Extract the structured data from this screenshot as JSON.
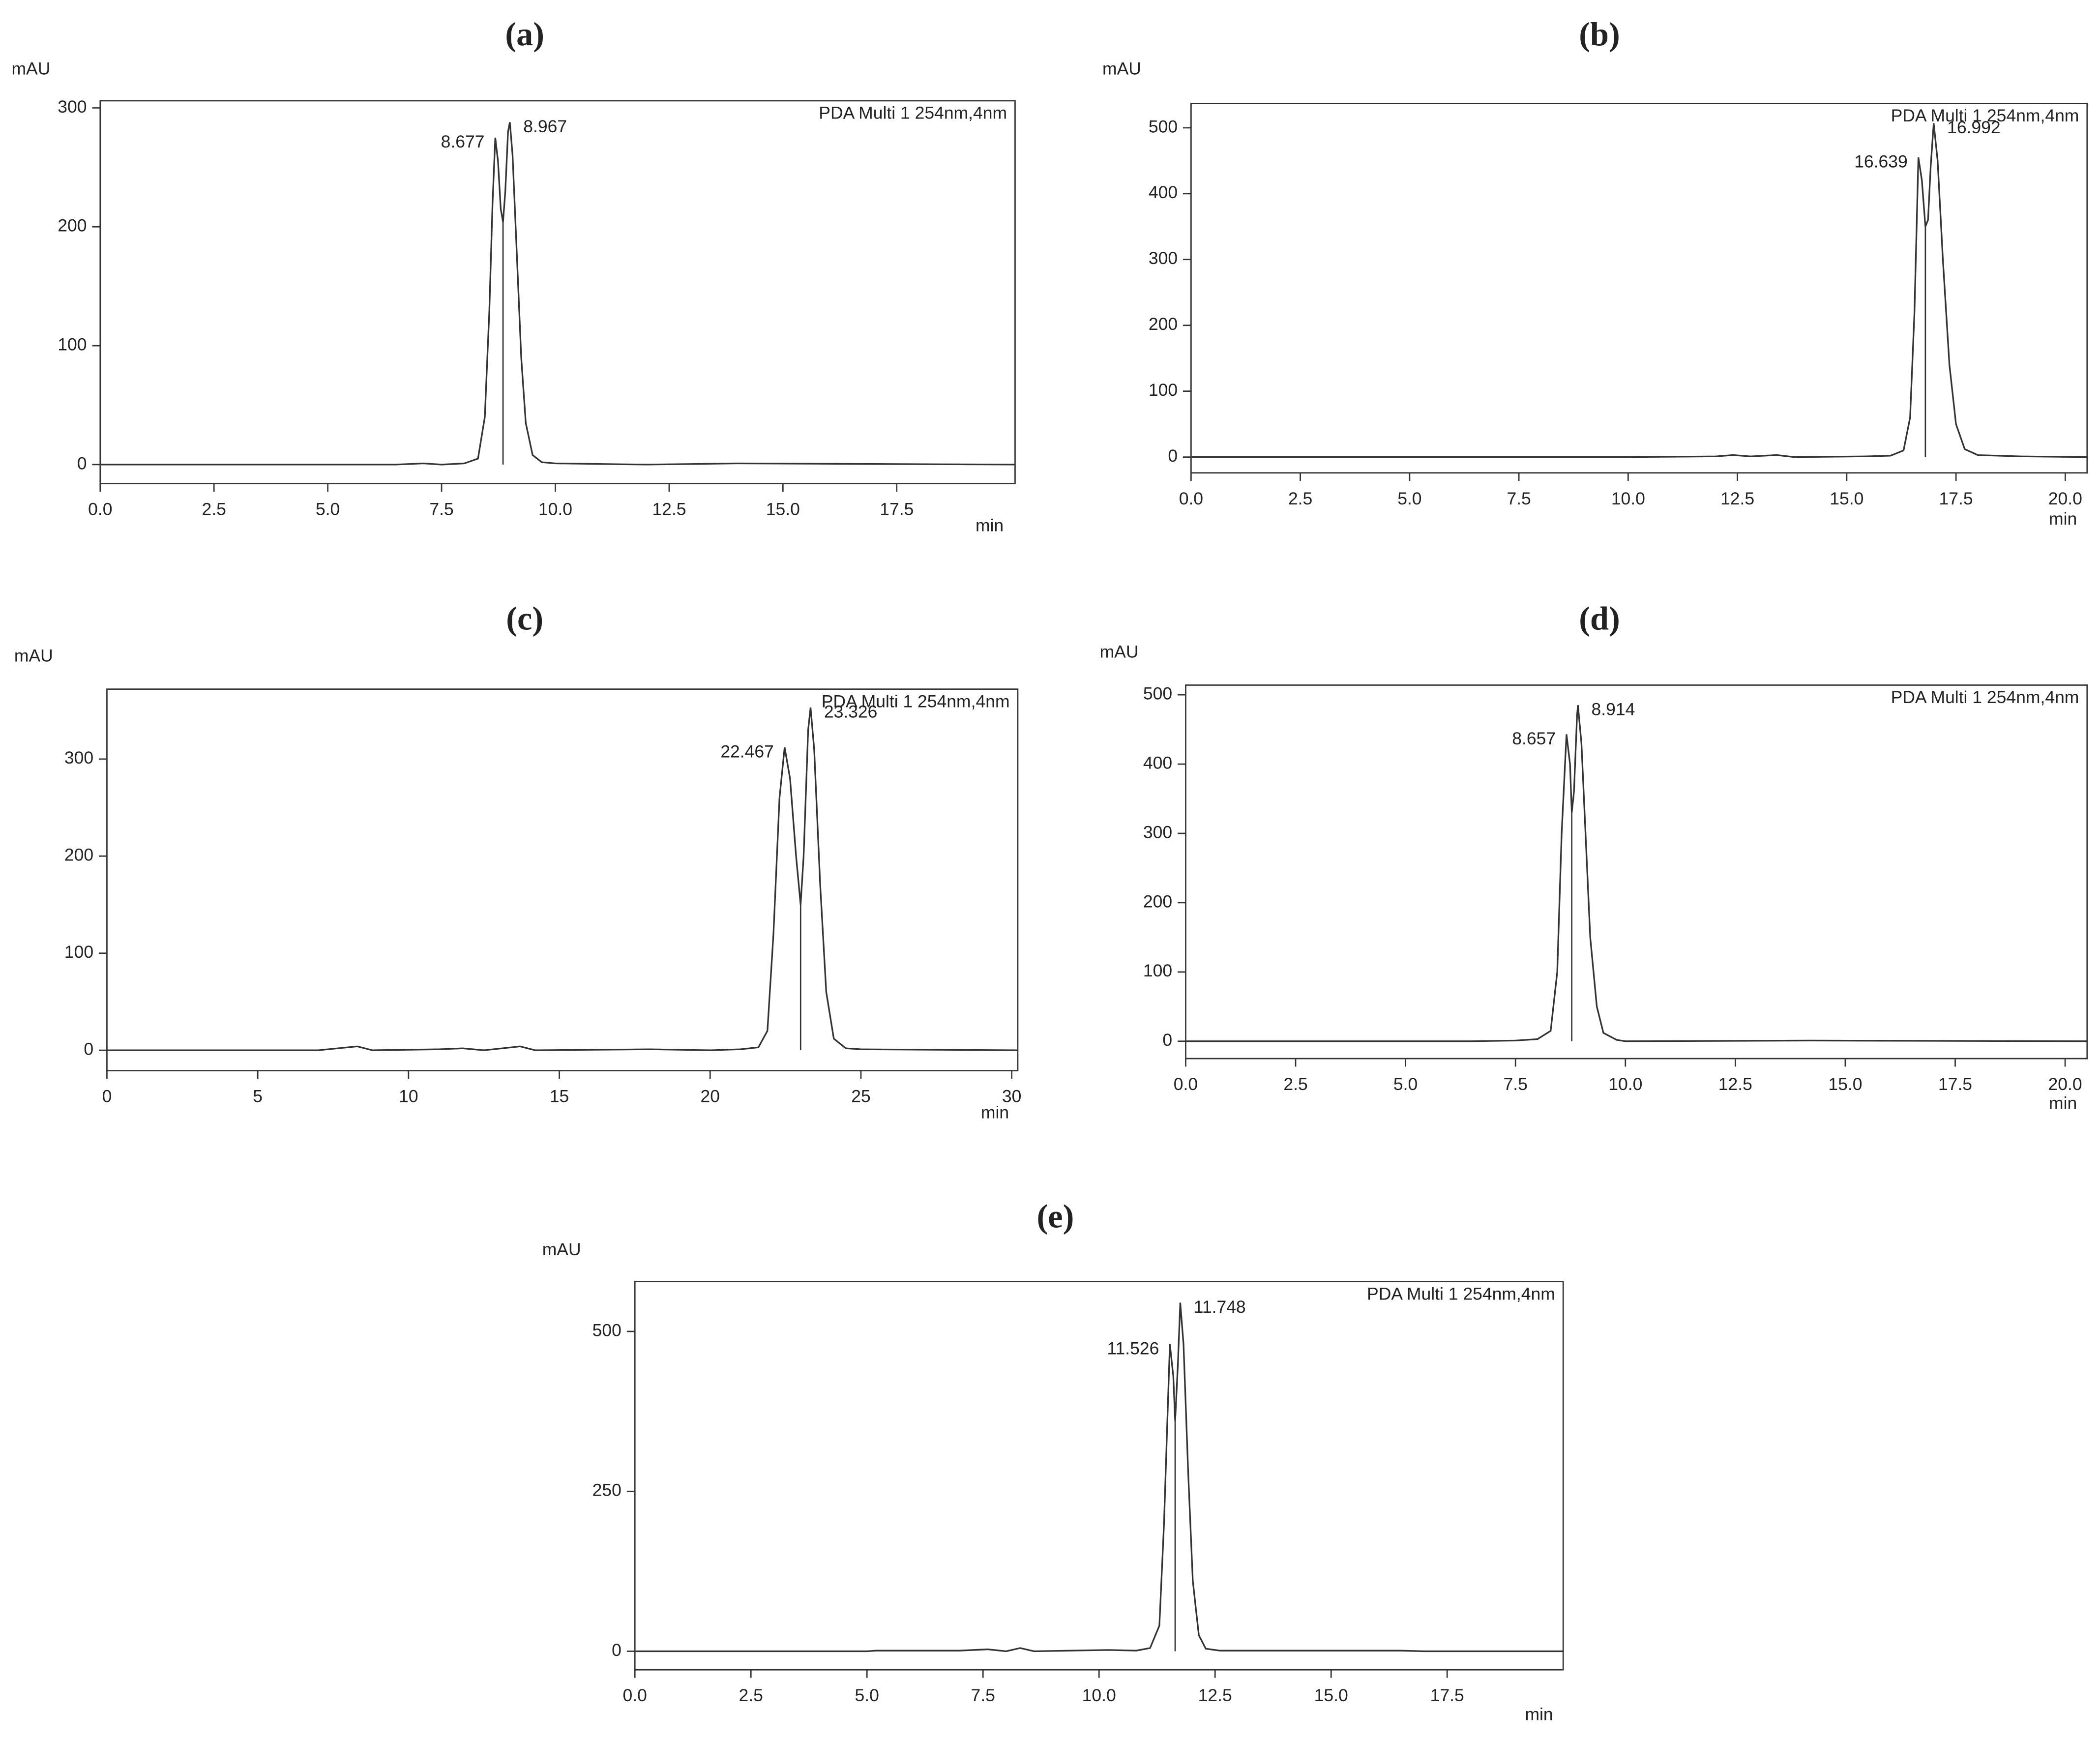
{
  "chart_data": [
    {
      "type": "line",
      "panel_label": "(a)",
      "ylabel": "mAU",
      "xlabel": "min",
      "annotation": "PDA Multi 1 254nm,4nm",
      "color": "#333333",
      "xlim": [
        0,
        20.1
      ],
      "ylim": [
        -16,
        306
      ],
      "xticks": [
        {
          "value": 0,
          "label": "0.0"
        },
        2.5,
        {
          "value": 5,
          "label": "5.0"
        },
        7.5,
        {
          "value": 10,
          "label": "10.0"
        },
        12.5,
        {
          "value": 15,
          "label": "15.0"
        },
        17.5
      ],
      "yticks": [
        0,
        100,
        200,
        300
      ],
      "x": [
        0,
        6.5,
        7.1,
        7.5,
        8.0,
        8.3,
        8.45,
        8.55,
        8.62,
        8.68,
        8.74,
        8.8,
        8.85,
        8.9,
        8.96,
        9.0,
        9.06,
        9.15,
        9.25,
        9.35,
        9.5,
        9.7,
        10,
        12,
        14,
        20.1
      ],
      "values": [
        0,
        0,
        1,
        0,
        1,
        5,
        40,
        130,
        220,
        275,
        255,
        215,
        204,
        230,
        280,
        288,
        260,
        180,
        90,
        35,
        8,
        2,
        1,
        0,
        1,
        0
      ],
      "peak_labels": [
        8.677,
        8.967
      ]
    },
    {
      "type": "line",
      "panel_label": "(b)",
      "ylabel": "mAU",
      "xlabel": "min",
      "annotation": "PDA Multi 1 254nm,4nm",
      "color": "#333333",
      "xlim": [
        0,
        20.5
      ],
      "ylim": [
        -24,
        537
      ],
      "xticks": [
        {
          "value": 0,
          "label": "0.0"
        },
        2.5,
        {
          "value": 5,
          "label": "5.0"
        },
        7.5,
        {
          "value": 10,
          "label": "10.0"
        },
        12.5,
        {
          "value": 15,
          "label": "15.0"
        },
        17.5,
        {
          "value": 20,
          "label": "20.0"
        }
      ],
      "yticks": [
        0,
        100,
        200,
        300,
        400,
        500
      ],
      "x": [
        0,
        5,
        10,
        12,
        12.4,
        12.8,
        13.4,
        13.8,
        15.4,
        16,
        16.3,
        16.45,
        16.55,
        16.64,
        16.72,
        16.8,
        16.86,
        16.92,
        16.99,
        17.08,
        17.2,
        17.35,
        17.5,
        17.7,
        18,
        19,
        20.5
      ],
      "values": [
        0,
        0,
        0,
        1,
        3,
        1,
        3,
        0,
        1,
        2,
        10,
        60,
        220,
        455,
        420,
        350,
        360,
        440,
        507,
        450,
        300,
        140,
        50,
        12,
        3,
        1,
        0
      ],
      "peak_labels": [
        16.639,
        16.992
      ]
    },
    {
      "type": "line",
      "panel_label": "(c)",
      "ylabel": "mAU",
      "xlabel": "min",
      "annotation": "PDA Multi 1 254nm,4nm",
      "color": "#333333",
      "xlim": [
        0,
        30.2
      ],
      "ylim": [
        -21,
        372
      ],
      "xticks": [
        0,
        5,
        10,
        15,
        20,
        25,
        30
      ],
      "yticks": [
        0,
        100,
        200,
        300
      ],
      "x": [
        0,
        5,
        7,
        8.3,
        8.8,
        11,
        11.8,
        12.5,
        13.7,
        14.2,
        18,
        20,
        21,
        21.6,
        21.9,
        22.1,
        22.3,
        22.47,
        22.65,
        22.85,
        23.0,
        23.1,
        23.25,
        23.33,
        23.45,
        23.65,
        23.85,
        24.1,
        24.5,
        25,
        30.2
      ],
      "values": [
        0,
        0,
        0,
        4,
        0,
        1,
        2,
        0,
        4,
        0,
        1,
        0,
        1,
        3,
        20,
        120,
        260,
        312,
        280,
        200,
        150,
        200,
        330,
        353,
        310,
        170,
        60,
        12,
        2,
        1,
        0
      ],
      "peak_labels": [
        22.467,
        23.326
      ]
    },
    {
      "type": "line",
      "panel_label": "(d)",
      "ylabel": "mAU",
      "xlabel": "min",
      "annotation": "PDA Multi 1 254nm,4nm",
      "color": "#333333",
      "xlim": [
        0,
        20.5
      ],
      "ylim": [
        -25,
        514
      ],
      "xticks": [
        {
          "value": 0,
          "label": "0.0"
        },
        2.5,
        {
          "value": 5,
          "label": "5.0"
        },
        7.5,
        {
          "value": 10,
          "label": "10.0"
        },
        12.5,
        {
          "value": 15,
          "label": "15.0"
        },
        17.5,
        {
          "value": 20,
          "label": "20.0"
        }
      ],
      "yticks": [
        0,
        100,
        200,
        300,
        400,
        500
      ],
      "x": [
        0,
        6.5,
        7.5,
        8.0,
        8.3,
        8.45,
        8.55,
        8.66,
        8.74,
        8.78,
        8.83,
        8.9,
        8.92,
        9.0,
        9.1,
        9.2,
        9.35,
        9.5,
        9.8,
        10,
        14.2,
        20.5
      ],
      "values": [
        0,
        0,
        1,
        3,
        15,
        100,
        300,
        443,
        400,
        330,
        360,
        470,
        485,
        430,
        290,
        150,
        50,
        12,
        2,
        0,
        1,
        0
      ],
      "peak_labels": [
        8.657,
        8.914
      ]
    },
    {
      "type": "line",
      "panel_label": "(e)",
      "ylabel": "mAU",
      "xlabel": "min",
      "annotation": "PDA Multi 1 254nm,4nm",
      "color": "#333333",
      "xlim": [
        0,
        20
      ],
      "ylim": [
        -29,
        578
      ],
      "xticks": [
        {
          "value": 0,
          "label": "0.0"
        },
        2.5,
        {
          "value": 5,
          "label": "5.0"
        },
        7.5,
        {
          "value": 10,
          "label": "10.0"
        },
        12.5,
        {
          "value": 15,
          "label": "15.0"
        },
        17.5
      ],
      "yticks": [
        0,
        250,
        500
      ],
      "x": [
        0,
        5,
        5.2,
        7.0,
        7.6,
        8.0,
        8.3,
        8.6,
        10.2,
        10.8,
        11.1,
        11.3,
        11.4,
        11.526,
        11.6,
        11.64,
        11.7,
        11.75,
        11.82,
        11.92,
        12.02,
        12.15,
        12.3,
        12.6,
        16.5,
        17,
        20
      ],
      "values": [
        0,
        0,
        1,
        1,
        3,
        0,
        5,
        0,
        2,
        1,
        5,
        40,
        200,
        480,
        430,
        360,
        450,
        545,
        480,
        280,
        110,
        25,
        4,
        1,
        1,
        0,
        0
      ],
      "peak_labels": [
        11.526,
        11.748
      ]
    }
  ]
}
